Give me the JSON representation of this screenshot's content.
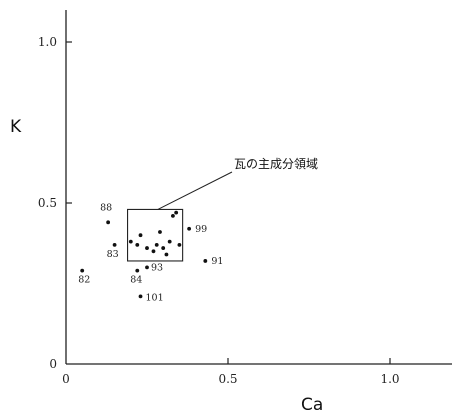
{
  "chart_data": {
    "type": "scatter",
    "xlabel": "Ca",
    "ylabel": "K",
    "xlim": [
      0,
      1.2
    ],
    "ylim": [
      0,
      1.1
    ],
    "x_ticks": [
      "0",
      "0.5",
      "1.0"
    ],
    "y_ticks": [
      "0",
      "0.5",
      "1.0"
    ],
    "grid": false,
    "region": {
      "label": "瓦の主成分領域",
      "x": [
        0.19,
        0.36
      ],
      "y": [
        0.32,
        0.48
      ]
    },
    "labeled_points": [
      {
        "label": "88",
        "x": 0.13,
        "y": 0.44
      },
      {
        "label": "83",
        "x": 0.15,
        "y": 0.37
      },
      {
        "label": "82",
        "x": 0.05,
        "y": 0.29
      },
      {
        "label": "84",
        "x": 0.22,
        "y": 0.29
      },
      {
        "label": "93",
        "x": 0.25,
        "y": 0.3
      },
      {
        "label": "99",
        "x": 0.38,
        "y": 0.42
      },
      {
        "label": "91",
        "x": 0.43,
        "y": 0.32
      },
      {
        "label": "101",
        "x": 0.23,
        "y": 0.21
      }
    ],
    "points": [
      {
        "x": 0.2,
        "y": 0.38
      },
      {
        "x": 0.22,
        "y": 0.37
      },
      {
        "x": 0.23,
        "y": 0.4
      },
      {
        "x": 0.25,
        "y": 0.36
      },
      {
        "x": 0.27,
        "y": 0.35
      },
      {
        "x": 0.28,
        "y": 0.37
      },
      {
        "x": 0.29,
        "y": 0.41
      },
      {
        "x": 0.3,
        "y": 0.36
      },
      {
        "x": 0.31,
        "y": 0.34
      },
      {
        "x": 0.32,
        "y": 0.38
      },
      {
        "x": 0.33,
        "y": 0.46
      },
      {
        "x": 0.34,
        "y": 0.47
      },
      {
        "x": 0.35,
        "y": 0.37
      }
    ]
  }
}
